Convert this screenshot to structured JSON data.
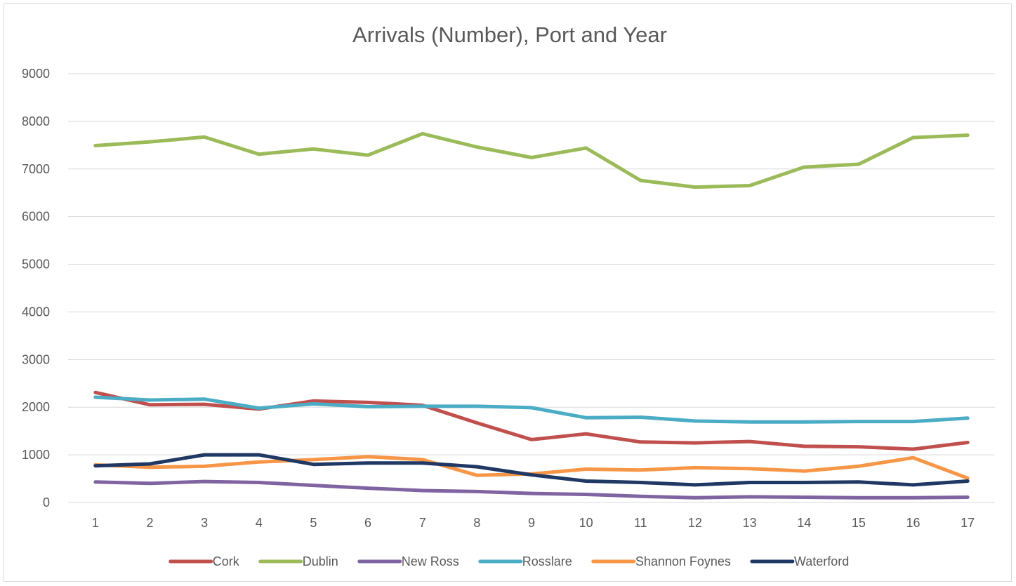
{
  "chart_data": {
    "type": "line",
    "title": "Arrivals (Number), Port and Year",
    "xlabel": "",
    "ylabel": "",
    "categories": [
      "1",
      "2",
      "3",
      "4",
      "5",
      "6",
      "7",
      "8",
      "9",
      "10",
      "11",
      "12",
      "13",
      "14",
      "15",
      "16",
      "17"
    ],
    "ylim": [
      0,
      9000
    ],
    "yticks": [
      0,
      1000,
      2000,
      3000,
      4000,
      5000,
      6000,
      7000,
      8000,
      9000
    ],
    "grid": true,
    "legend": "bottom",
    "series": [
      {
        "name": "Cork",
        "color": "#c0504d",
        "values": [
          2310,
          2050,
          2060,
          1960,
          2130,
          2100,
          2040,
          1670,
          1320,
          1440,
          1270,
          1250,
          1280,
          1180,
          1170,
          1120,
          1260
        ]
      },
      {
        "name": "Dublin",
        "color": "#9bbb59",
        "values": [
          7490,
          7570,
          7670,
          7310,
          7420,
          7290,
          7740,
          7460,
          7240,
          7440,
          6760,
          6620,
          6650,
          7040,
          7100,
          7660,
          7710
        ]
      },
      {
        "name": "New Ross",
        "color": "#8064a2",
        "values": [
          430,
          400,
          440,
          420,
          360,
          300,
          250,
          230,
          190,
          170,
          130,
          100,
          120,
          110,
          100,
          100,
          110
        ]
      },
      {
        "name": "Rosslare",
        "color": "#4bacc6",
        "values": [
          2210,
          2150,
          2170,
          1980,
          2070,
          2010,
          2020,
          2020,
          1990,
          1780,
          1790,
          1710,
          1690,
          1690,
          1700,
          1700,
          1770
        ]
      },
      {
        "name": "Shannon Foynes",
        "color": "#f79646",
        "values": [
          790,
          740,
          760,
          850,
          900,
          960,
          900,
          570,
          600,
          700,
          680,
          730,
          710,
          660,
          760,
          940,
          510
        ]
      },
      {
        "name": "Waterford",
        "color": "#1f3864",
        "values": [
          770,
          810,
          1000,
          1000,
          800,
          830,
          830,
          750,
          580,
          450,
          420,
          370,
          420,
          420,
          430,
          370,
          450
        ]
      }
    ]
  }
}
